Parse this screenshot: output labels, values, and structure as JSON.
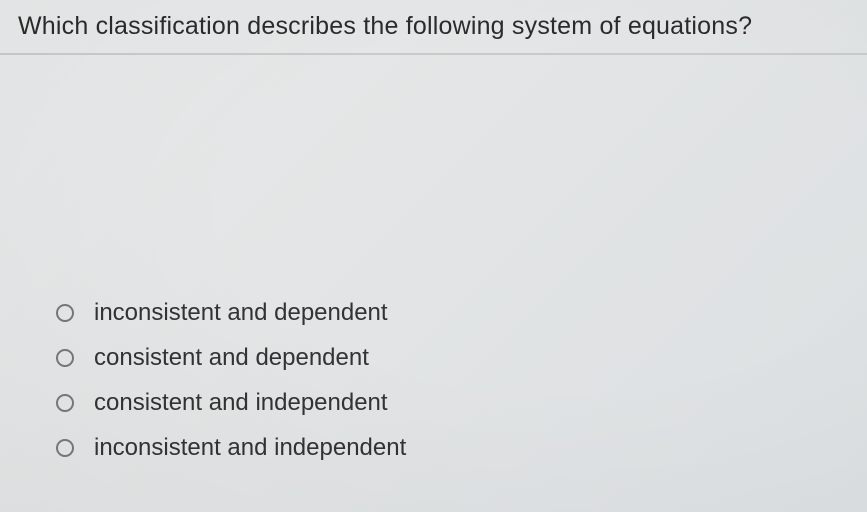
{
  "question": {
    "text": "Which classification describes the following system of equations?",
    "text_color": "#2b2b2b",
    "fontsize": 25,
    "border_bottom_color": "#c8cacb"
  },
  "background": {
    "gradient_start": "#e8e9ea",
    "gradient_mid": "#e2e4e5",
    "gradient_end": "#dce0e2"
  },
  "options": {
    "fontsize": 24,
    "text_color": "#333333",
    "radio_border_color": "#787878",
    "items": [
      {
        "label": "inconsistent and dependent",
        "selected": false
      },
      {
        "label": "consistent and dependent",
        "selected": false
      },
      {
        "label": "consistent and independent",
        "selected": false
      },
      {
        "label": "inconsistent and independent",
        "selected": false
      }
    ]
  }
}
